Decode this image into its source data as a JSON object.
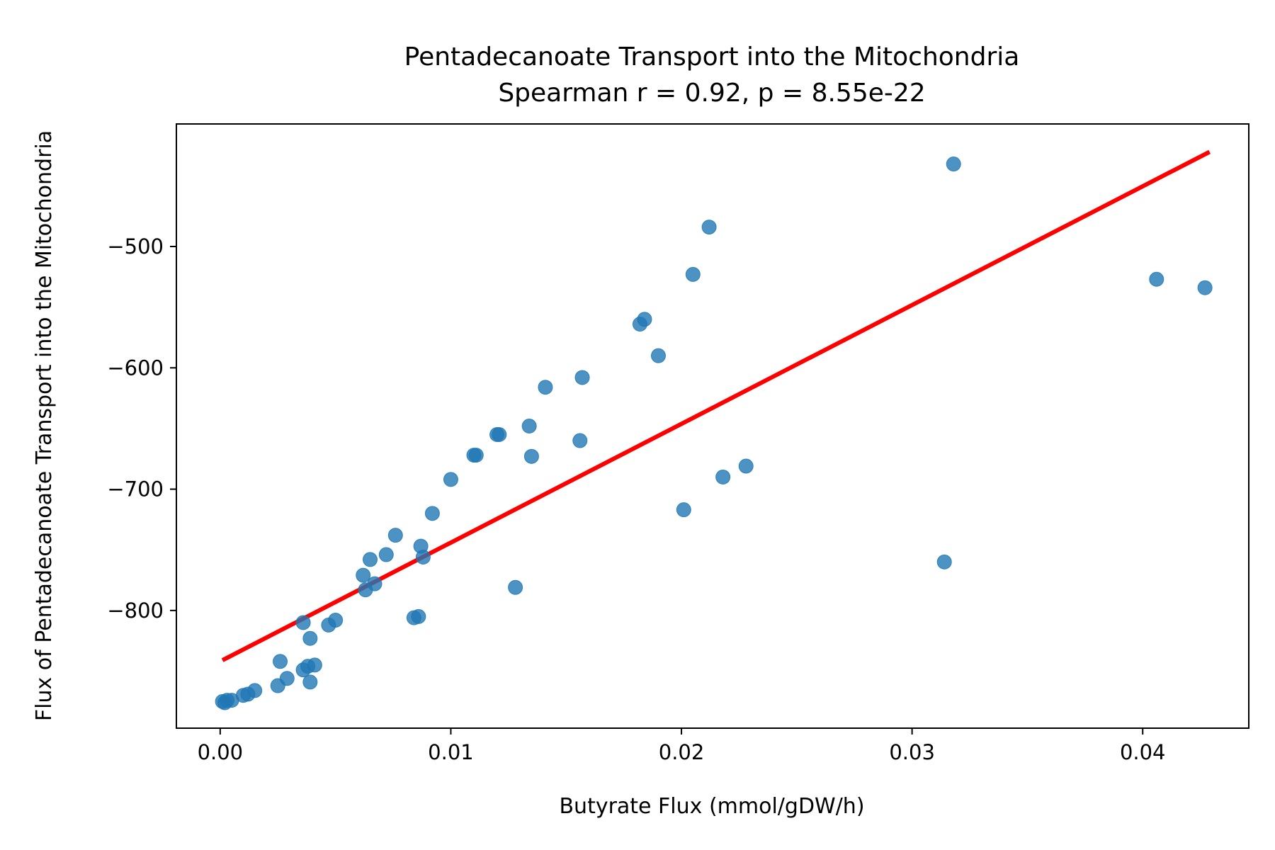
{
  "chart_data": {
    "type": "scatter",
    "title": "Pentadecanoate Transport into the Mitochondria",
    "subtitle": "Spearman r = 0.92, p = 8.55e-22",
    "xlabel": "Butyrate Flux (mmol/gDW/h)",
    "ylabel": "Flux of Pentadecanoate Transport into the Mitochondria",
    "xlim": [
      -0.0019,
      0.0446
    ],
    "ylim": [
      -897,
      -399
    ],
    "x_ticks": [
      0.0,
      0.01,
      0.02,
      0.03,
      0.04
    ],
    "x_tick_labels": [
      "0.00",
      "0.01",
      "0.02",
      "0.03",
      "0.04"
    ],
    "y_ticks": [
      -500,
      -600,
      -700,
      -800
    ],
    "y_tick_labels": [
      "−500",
      "−600",
      "−700",
      "−800"
    ],
    "grid": false,
    "colors": {
      "points": "#1f77b4",
      "fit_line": "#ff0000"
    },
    "fit_line": {
      "x": [
        0.0001,
        0.0429
      ],
      "y": [
        -841,
        -422
      ]
    },
    "points": [
      {
        "x": 0.0001,
        "y": -875
      },
      {
        "x": 0.0002,
        "y": -876
      },
      {
        "x": 0.0003,
        "y": -874
      },
      {
        "x": 0.0005,
        "y": -874
      },
      {
        "x": 0.001,
        "y": -870
      },
      {
        "x": 0.0012,
        "y": -869
      },
      {
        "x": 0.0015,
        "y": -866
      },
      {
        "x": 0.0025,
        "y": -862
      },
      {
        "x": 0.0026,
        "y": -842
      },
      {
        "x": 0.0029,
        "y": -856
      },
      {
        "x": 0.0036,
        "y": -810
      },
      {
        "x": 0.0036,
        "y": -849
      },
      {
        "x": 0.0038,
        "y": -846
      },
      {
        "x": 0.0039,
        "y": -859
      },
      {
        "x": 0.0039,
        "y": -823
      },
      {
        "x": 0.0041,
        "y": -845
      },
      {
        "x": 0.0047,
        "y": -812
      },
      {
        "x": 0.005,
        "y": -808
      },
      {
        "x": 0.0062,
        "y": -771
      },
      {
        "x": 0.0063,
        "y": -783
      },
      {
        "x": 0.0065,
        "y": -758
      },
      {
        "x": 0.0067,
        "y": -778
      },
      {
        "x": 0.0072,
        "y": -754
      },
      {
        "x": 0.0076,
        "y": -738
      },
      {
        "x": 0.0084,
        "y": -806
      },
      {
        "x": 0.0086,
        "y": -805
      },
      {
        "x": 0.0087,
        "y": -747
      },
      {
        "x": 0.0088,
        "y": -756
      },
      {
        "x": 0.0092,
        "y": -720
      },
      {
        "x": 0.01,
        "y": -692
      },
      {
        "x": 0.011,
        "y": -672
      },
      {
        "x": 0.0111,
        "y": -672
      },
      {
        "x": 0.012,
        "y": -655
      },
      {
        "x": 0.0121,
        "y": -655
      },
      {
        "x": 0.0128,
        "y": -781
      },
      {
        "x": 0.0134,
        "y": -648
      },
      {
        "x": 0.0135,
        "y": -673
      },
      {
        "x": 0.0141,
        "y": -616
      },
      {
        "x": 0.0156,
        "y": -660
      },
      {
        "x": 0.0157,
        "y": -608
      },
      {
        "x": 0.0182,
        "y": -564
      },
      {
        "x": 0.0184,
        "y": -560
      },
      {
        "x": 0.019,
        "y": -590
      },
      {
        "x": 0.0201,
        "y": -717
      },
      {
        "x": 0.0205,
        "y": -523
      },
      {
        "x": 0.0212,
        "y": -484
      },
      {
        "x": 0.0218,
        "y": -690
      },
      {
        "x": 0.0228,
        "y": -681
      },
      {
        "x": 0.0314,
        "y": -760
      },
      {
        "x": 0.0318,
        "y": -432
      },
      {
        "x": 0.0406,
        "y": -527
      },
      {
        "x": 0.0427,
        "y": -534
      }
    ]
  }
}
